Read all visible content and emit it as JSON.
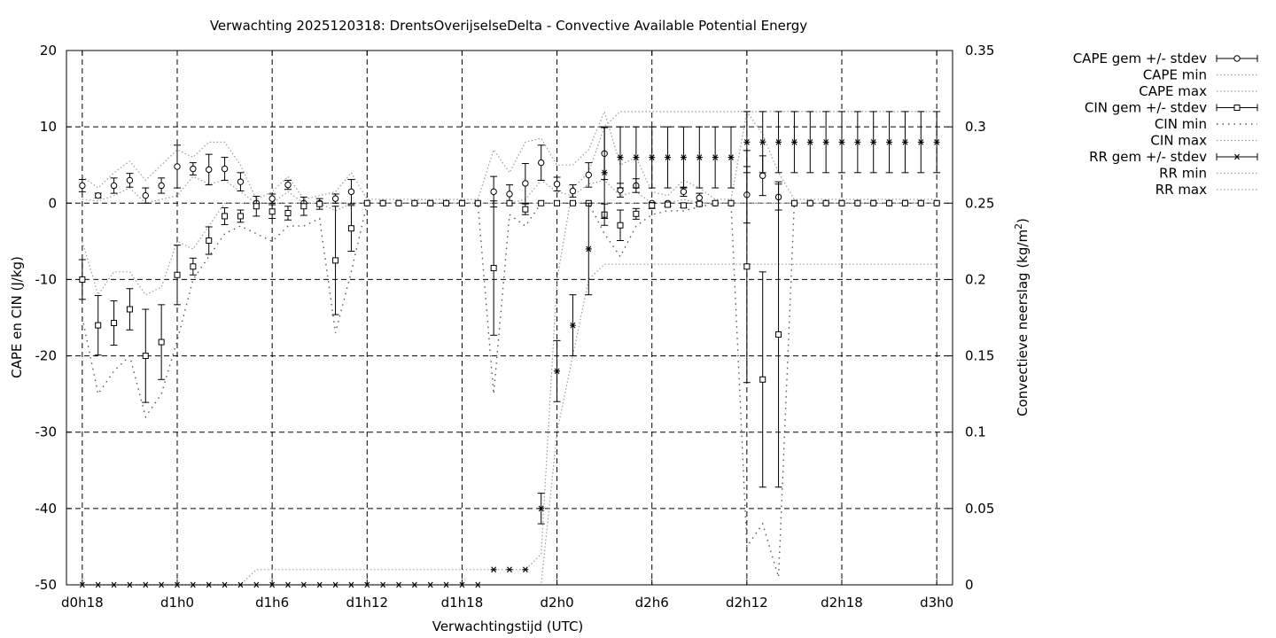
{
  "chart_data": {
    "type": "line",
    "title": "Verwachting 2025120318: DrentsOverijselseDelta - Convective Available Potential Energy",
    "xlabel": "Verwachtingstijd (UTC)",
    "ylabel": "CAPE en CIN (J/kg)",
    "y2label_main": "Convectieve neerslag (kg/m",
    "y2label_sup": "2",
    "y2label_end": ")",
    "x_unit": "hours from d0h0",
    "xlim": [
      17,
      73
    ],
    "ylim": [
      -50,
      20
    ],
    "y2lim": [
      0,
      0.35
    ],
    "grid": true,
    "legend_position": "right, outside",
    "x_ticks": [
      {
        "label": "d0h18",
        "x": 18
      },
      {
        "label": "d1h0",
        "x": 24
      },
      {
        "label": "d1h6",
        "x": 30
      },
      {
        "label": "d1h12",
        "x": 36
      },
      {
        "label": "d1h18",
        "x": 42
      },
      {
        "label": "d2h0",
        "x": 48
      },
      {
        "label": "d2h6",
        "x": 54
      },
      {
        "label": "d2h12",
        "x": 60
      },
      {
        "label": "d2h18",
        "x": 66
      },
      {
        "label": "d3h0",
        "x": 72
      }
    ],
    "y_ticks": [
      {
        "label": "20",
        "v": 20
      },
      {
        "label": "10",
        "v": 10
      },
      {
        "label": "0",
        "v": 0
      },
      {
        "label": "-10",
        "v": -10
      },
      {
        "label": "-20",
        "v": -20
      },
      {
        "label": "-30",
        "v": -30
      },
      {
        "label": "-40",
        "v": -40
      },
      {
        "label": "-50",
        "v": -50
      }
    ],
    "y2_ticks": [
      {
        "label": "0.35",
        "v": 0.35
      },
      {
        "label": "0.3",
        "v": 0.3
      },
      {
        "label": "0.25",
        "v": 0.25
      },
      {
        "label": "0.2",
        "v": 0.2
      },
      {
        "label": "0.15",
        "v": 0.15
      },
      {
        "label": "0.1",
        "v": 0.1
      },
      {
        "label": "0.05",
        "v": 0.05
      },
      {
        "label": "0",
        "v": 0
      }
    ],
    "x": [
      18,
      19,
      20,
      21,
      22,
      23,
      24,
      25,
      26,
      27,
      28,
      29,
      30,
      31,
      32,
      33,
      34,
      35,
      36,
      37,
      38,
      39,
      40,
      41,
      42,
      43,
      44,
      45,
      46,
      47,
      48,
      49,
      50,
      51,
      52,
      53,
      54,
      55,
      56,
      57,
      58,
      59,
      60,
      61,
      62,
      63,
      64,
      65,
      66,
      67,
      68,
      69,
      70,
      71,
      72
    ],
    "series": [
      {
        "name": "CAPE gem +/- stdev",
        "marker": "circle",
        "axis": "y",
        "mean": [
          2.3,
          1,
          2.3,
          3,
          1,
          2.3,
          4.8,
          4.5,
          4.4,
          4.5,
          2.8,
          0,
          0.6,
          2.4,
          0,
          0,
          0.6,
          1.5,
          0,
          0,
          0,
          0,
          0,
          0,
          0,
          0,
          1.5,
          1.2,
          2.6,
          5.3,
          2.5,
          1.6,
          3.7,
          6.5,
          1.7,
          2.3,
          0,
          0,
          1.5,
          0.7,
          0,
          0,
          1.1,
          3.6,
          0.8,
          0,
          0,
          0,
          0,
          0,
          0,
          0,
          0,
          0,
          0
        ],
        "sd": [
          0.8,
          0.3,
          1,
          0.9,
          1,
          1,
          2.8,
          0.8,
          2,
          1.5,
          1.2,
          0,
          0.6,
          0.6,
          0,
          0,
          0.6,
          1.6,
          0,
          0,
          0,
          0,
          0,
          0,
          0,
          0,
          2,
          1.2,
          2.6,
          2.3,
          0.9,
          0.8,
          1.6,
          3.4,
          0.9,
          0.9,
          0,
          0,
          0.6,
          0.6,
          0,
          0,
          3.7,
          2.6,
          1.7,
          0,
          0,
          0,
          0,
          0,
          0,
          0,
          0,
          0,
          0
        ]
      },
      {
        "name": "CAPE min",
        "axis": "y",
        "values": [
          0.5,
          0.3,
          1,
          2,
          0,
          0.5,
          1,
          3.5,
          2.5,
          3,
          1.5,
          0,
          0,
          1.5,
          0,
          0,
          0,
          0,
          0,
          0,
          0,
          0,
          0,
          0,
          0,
          0,
          0,
          0,
          0.5,
          3,
          1.5,
          1,
          2.5,
          3,
          1,
          1.5,
          0,
          0,
          0.5,
          0,
          0,
          0,
          0,
          0,
          0,
          0,
          0,
          0,
          0,
          0,
          0,
          0,
          0,
          0,
          0
        ]
      },
      {
        "name": "CAPE max",
        "axis": "y",
        "values": [
          3.5,
          2,
          4,
          5.5,
          3,
          5,
          7,
          6,
          8,
          8,
          5,
          0.5,
          1.5,
          3.5,
          0.5,
          1,
          1.5,
          4,
          0.5,
          0.5,
          0.5,
          0.5,
          0.5,
          0.5,
          0.5,
          0.5,
          7,
          4,
          8,
          8.5,
          5,
          5,
          7,
          12,
          5,
          6,
          1.5,
          1,
          3,
          2,
          0.5,
          0.5,
          12,
          9,
          4,
          0.5,
          0.5,
          0.5,
          0.5,
          0.5,
          0.5,
          0.5,
          0.5,
          0.5,
          0.5
        ]
      },
      {
        "name": "CIN gem +/- stdev",
        "marker": "square",
        "axis": "y",
        "mean": [
          -10,
          -16,
          -15.7,
          -13.9,
          -20,
          -18.2,
          -9.4,
          -8.3,
          -4.9,
          -1.7,
          -1.7,
          -0.4,
          -1.1,
          -1.3,
          -0.4,
          -0.1,
          -7.5,
          -3.3,
          0,
          0,
          0,
          0,
          0,
          0,
          0,
          0,
          -8.5,
          0,
          -0.8,
          0,
          0,
          0,
          0,
          -1.5,
          -2.9,
          -1.4,
          -0.3,
          -0.2,
          -0.3,
          -0.1,
          0,
          0,
          -8.3,
          -23.1,
          -17.2,
          0,
          0,
          0,
          0,
          0,
          0,
          0,
          0,
          0,
          0
        ],
        "sd": [
          2.6,
          3.9,
          2.9,
          2.7,
          6.1,
          4.9,
          3.9,
          1.1,
          1.8,
          1.1,
          0.8,
          1.3,
          0.9,
          0.9,
          1.2,
          0.7,
          7.1,
          3,
          0,
          0,
          0,
          0,
          0,
          0,
          0,
          0,
          8.8,
          0,
          0.7,
          0,
          0,
          0,
          0,
          1.4,
          2,
          0.7,
          0.4,
          0.2,
          0.3,
          0.2,
          0,
          0,
          15.2,
          14.1,
          20,
          0,
          0,
          0,
          0,
          0,
          0,
          0,
          0,
          0,
          0
        ]
      },
      {
        "name": "CIN min",
        "axis": "y",
        "values": [
          -15,
          -25,
          -22,
          -20,
          -28,
          -25,
          -18,
          -10,
          -7,
          -4,
          -3,
          -4,
          -5,
          -3,
          -3,
          -2,
          -17,
          -9,
          0,
          0,
          0,
          0,
          0,
          0,
          0,
          0,
          -25,
          -1.5,
          -3,
          0,
          0,
          0,
          0,
          -4,
          -7,
          -3,
          -1.5,
          -1,
          -1,
          -0.5,
          0,
          0,
          -45,
          -42,
          -49,
          0,
          0,
          0,
          0,
          0,
          0,
          0,
          0,
          0,
          0
        ]
      },
      {
        "name": "CIN max",
        "axis": "y",
        "values": [
          -5,
          -12,
          -9,
          -9,
          -12,
          -11,
          -5,
          -6,
          -3,
          0,
          0,
          0,
          0,
          0,
          0,
          0,
          -1,
          0,
          0,
          0,
          0,
          0,
          0,
          0,
          0,
          0,
          0,
          0,
          0,
          0,
          0,
          0,
          0,
          0,
          0,
          0,
          0,
          0,
          0,
          0,
          0,
          0,
          0,
          0,
          0,
          0,
          0,
          0,
          0,
          0,
          0,
          0,
          0,
          0,
          0
        ]
      },
      {
        "name": "RR gem +/- stdev",
        "marker": "star",
        "axis": "y2",
        "mean": [
          0,
          0,
          0,
          0,
          0,
          0,
          0,
          0,
          0,
          0,
          0,
          0,
          0,
          0,
          0,
          0,
          0,
          0,
          0,
          0,
          0,
          0,
          0,
          0,
          0,
          0,
          0.01,
          0.01,
          0.01,
          0.05,
          0.14,
          0.17,
          0.22,
          0.27,
          0.28,
          0.28,
          0.28,
          0.28,
          0.28,
          0.28,
          0.28,
          0.28,
          0.29,
          0.29,
          0.29,
          0.29,
          0.29,
          0.29,
          0.29,
          0.29,
          0.29,
          0.29,
          0.29,
          0.29,
          0.29
        ],
        "sd": [
          0,
          0,
          0,
          0,
          0,
          0,
          0,
          0,
          0,
          0,
          0,
          0,
          0,
          0,
          0,
          0,
          0,
          0,
          0,
          0,
          0,
          0,
          0,
          0,
          0,
          0,
          0,
          0,
          0,
          0.01,
          0.02,
          0.02,
          0.03,
          0.03,
          0.02,
          0.02,
          0.02,
          0.02,
          0.02,
          0.02,
          0.02,
          0.02,
          0.02,
          0.02,
          0.02,
          0.02,
          0.02,
          0.02,
          0.02,
          0.02,
          0.02,
          0.02,
          0.02,
          0.02,
          0.02
        ]
      },
      {
        "name": "RR min",
        "axis": "y2",
        "values": [
          0,
          0,
          0,
          0,
          0,
          0,
          0,
          0,
          0,
          0,
          0,
          0,
          0,
          0,
          0,
          0,
          0,
          0,
          0,
          0,
          0,
          0,
          0,
          0,
          0,
          0,
          0,
          0,
          0,
          0,
          0.1,
          0.15,
          0.2,
          0.21,
          0.21,
          0.21,
          0.21,
          0.21,
          0.21,
          0.21,
          0.21,
          0.21,
          0.21,
          0.21,
          0.21,
          0.21,
          0.21,
          0.21,
          0.21,
          0.21,
          0.21,
          0.21,
          0.21,
          0.21,
          0.21
        ]
      },
      {
        "name": "RR max",
        "axis": "y2",
        "values": [
          0,
          0,
          0,
          0,
          0,
          0,
          0,
          0,
          0,
          0,
          0,
          0.01,
          0.01,
          0.01,
          0.01,
          0.01,
          0.01,
          0.01,
          0.01,
          0.01,
          0.01,
          0.01,
          0.01,
          0.01,
          0.01,
          0.01,
          0.01,
          0.01,
          0.01,
          0.02,
          0.2,
          0.26,
          0.27,
          0.3,
          0.31,
          0.31,
          0.31,
          0.31,
          0.31,
          0.31,
          0.31,
          0.31,
          0.31,
          0.31,
          0.31,
          0.31,
          0.31,
          0.31,
          0.31,
          0.31,
          0.31,
          0.31,
          0.31,
          0.31,
          0.31
        ]
      }
    ]
  }
}
